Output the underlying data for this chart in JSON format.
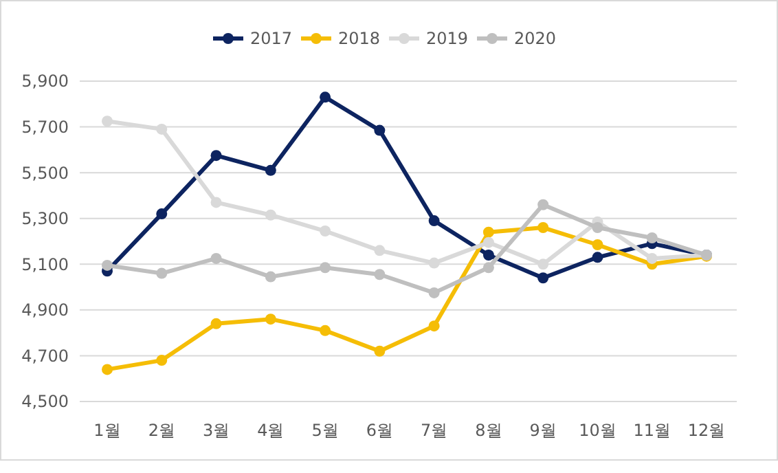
{
  "chart_data": {
    "type": "line",
    "categories": [
      "1월",
      "2월",
      "3월",
      "4월",
      "5월",
      "6월",
      "7월",
      "8월",
      "9월",
      "10월",
      "11월",
      "12월"
    ],
    "series": [
      {
        "name": "2017",
        "color": "#0d2460",
        "values": [
          5070,
          5320,
          5575,
          5510,
          5830,
          5685,
          5290,
          5140,
          5040,
          5130,
          5190,
          5140
        ]
      },
      {
        "name": "2018",
        "color": "#f5bd06",
        "values": [
          4640,
          4680,
          4840,
          4860,
          4810,
          4720,
          4830,
          5240,
          5260,
          5185,
          5100,
          5135
        ]
      },
      {
        "name": "2019",
        "color": "#d9d9d9",
        "values": [
          5725,
          5690,
          5370,
          5315,
          5245,
          5160,
          5105,
          5195,
          5100,
          5285,
          5125,
          5140
        ]
      },
      {
        "name": "2020",
        "color": "#bfbfbf",
        "values": [
          5095,
          5060,
          5125,
          5045,
          5085,
          5055,
          4975,
          5085,
          5360,
          5260,
          5215,
          5140
        ]
      }
    ],
    "ylim": [
      4500,
      5900
    ],
    "yticks": [
      {
        "value": 4500,
        "label": "4,500"
      },
      {
        "value": 4700,
        "label": "4,700"
      },
      {
        "value": 4900,
        "label": "4,900"
      },
      {
        "value": 5100,
        "label": "5,100"
      },
      {
        "value": 5300,
        "label": "5,300"
      },
      {
        "value": 5500,
        "label": "5,500"
      },
      {
        "value": 5700,
        "label": "5,700"
      },
      {
        "value": 5900,
        "label": "5,900"
      }
    ],
    "grid": "y",
    "legend": "top",
    "marker": "circle",
    "line_style": "solid"
  }
}
